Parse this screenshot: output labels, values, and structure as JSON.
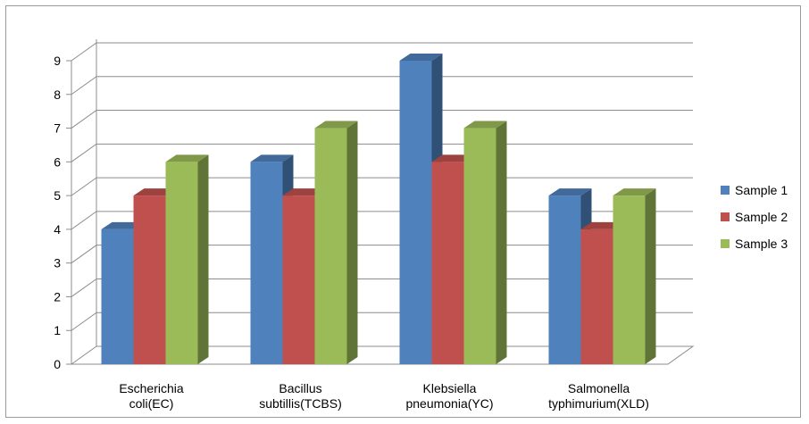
{
  "chart_data": {
    "type": "bar",
    "style": "3d-clustered-column",
    "title": "",
    "xlabel": "",
    "ylabel": "",
    "ylim": [
      0,
      9
    ],
    "y_ticks": [
      "0",
      "1",
      "2",
      "3",
      "4",
      "5",
      "6",
      "7",
      "8",
      "9"
    ],
    "grid": true,
    "legend_position": "right",
    "categories": [
      [
        "Escherichia",
        "coli(EC)"
      ],
      [
        "Bacillus",
        "subtillis(TCBS)"
      ],
      [
        "Klebsiella",
        "pneumonia(YC)"
      ],
      [
        "Salmonella",
        "typhimurium(XLD)"
      ]
    ],
    "series": [
      {
        "name": "Sample 1",
        "color": "#4F81BD",
        "values": [
          4,
          6,
          9,
          5
        ]
      },
      {
        "name": "Sample 2",
        "color": "#C0504D",
        "values": [
          5,
          5,
          6,
          4
        ]
      },
      {
        "name": "Sample 3",
        "color": "#9BBB59",
        "values": [
          6,
          7,
          7,
          5
        ]
      }
    ]
  }
}
